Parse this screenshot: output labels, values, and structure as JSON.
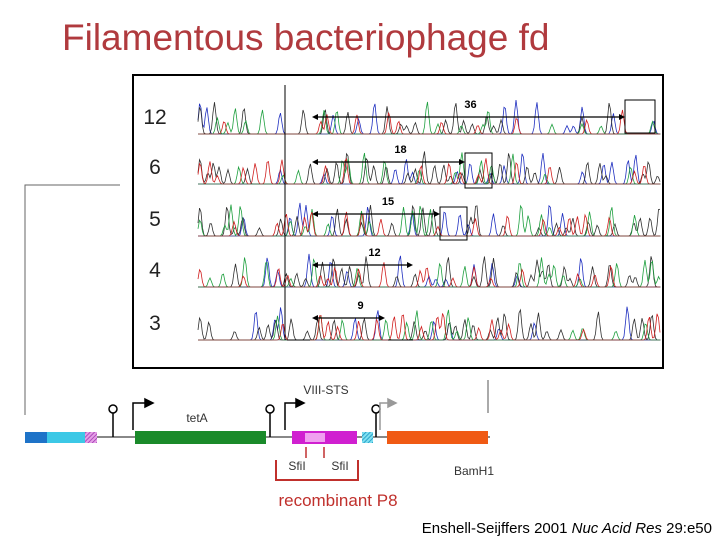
{
  "title": "Filamentous bacteriophage fd",
  "gel": {
    "lanes": [
      {
        "label": "12",
        "span": "36"
      },
      {
        "label": "6",
        "span": "18"
      },
      {
        "label": "5",
        "span": "15"
      },
      {
        "label": "4",
        "span": "12"
      },
      {
        "label": "3",
        "span": "9"
      }
    ]
  },
  "map": {
    "sts": "VIII-STS",
    "teta": "tetA",
    "sfi_left": "SfiI",
    "sfi_right": "SfiI",
    "bamh1": "BamH1",
    "bracket": "recombinant P8"
  },
  "citation": {
    "author": "Enshell-Seijffers",
    "year": "2001",
    "journal": "Nuc Acid Res",
    "ref": "29:e50"
  }
}
